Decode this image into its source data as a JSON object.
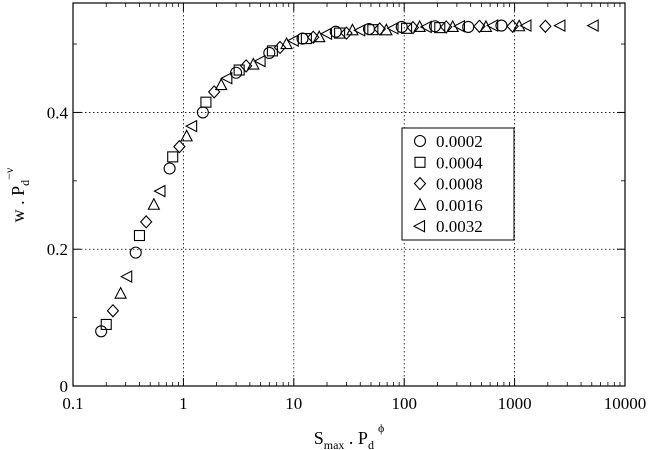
{
  "chart_data": {
    "type": "scatter",
    "title": "",
    "xlabel": {
      "main": "S",
      "sub1": "max",
      "mid": " . P",
      "sub2": "d",
      "sup": "ϕ"
    },
    "ylabel": {
      "main": "w . P",
      "sub": "d",
      "sup": "−ν"
    },
    "xscale": "log",
    "xlim": [
      0.1,
      10000
    ],
    "ylim": [
      0,
      0.56
    ],
    "xticks": [
      0.1,
      1,
      10,
      100,
      1000,
      10000
    ],
    "xtick_labels": [
      "0.1",
      "1",
      "10",
      "100",
      "1000",
      "10000"
    ],
    "yticks": [
      0,
      0.2,
      0.4
    ],
    "ytick_labels": [
      "0",
      "0.2",
      "0.4"
    ],
    "grid": "dotted major gridlines",
    "legend_position": "right-middle",
    "series": [
      {
        "name": "0.0002",
        "marker": "circle",
        "x": [
          0.18,
          0.37,
          0.75,
          1.5,
          3.0,
          6.0,
          12,
          24,
          48,
          95,
          190,
          380,
          760
        ],
        "y": [
          0.08,
          0.195,
          0.318,
          0.4,
          0.458,
          0.487,
          0.508,
          0.518,
          0.522,
          0.525,
          0.526,
          0.525,
          0.527
        ]
      },
      {
        "name": "0.0004",
        "marker": "square",
        "x": [
          0.2,
          0.4,
          0.8,
          1.6,
          3.2,
          6.4,
          13,
          26,
          52,
          105,
          210
        ],
        "y": [
          0.09,
          0.22,
          0.335,
          0.415,
          0.462,
          0.49,
          0.508,
          0.516,
          0.521,
          0.523,
          0.524
        ]
      },
      {
        "name": "0.0008",
        "marker": "diamond",
        "x": [
          0.23,
          0.46,
          0.92,
          1.9,
          3.7,
          7.5,
          15,
          30,
          60,
          120,
          240,
          480,
          960,
          1900
        ],
        "y": [
          0.11,
          0.24,
          0.35,
          0.43,
          0.468,
          0.495,
          0.51,
          0.516,
          0.522,
          0.524,
          0.525,
          0.526,
          0.526,
          0.526
        ]
      },
      {
        "name": "0.0016",
        "marker": "triangle-up",
        "x": [
          0.27,
          0.54,
          1.07,
          2.2,
          4.3,
          8.6,
          17,
          34,
          69,
          138,
          275,
          550,
          1100
        ],
        "y": [
          0.135,
          0.265,
          0.365,
          0.44,
          0.47,
          0.5,
          0.51,
          0.52,
          0.52,
          0.525,
          0.525,
          0.525,
          0.526
        ]
      },
      {
        "name": "0.0032",
        "marker": "triangle-left",
        "x": [
          0.31,
          0.62,
          1.2,
          2.5,
          5.0,
          10,
          20,
          40,
          80,
          160,
          320,
          640,
          1280,
          2600,
          5200
        ],
        "y": [
          0.16,
          0.285,
          0.38,
          0.45,
          0.475,
          0.505,
          0.515,
          0.52,
          0.523,
          0.525,
          0.526,
          0.527,
          0.527,
          0.527,
          0.527
        ]
      }
    ]
  }
}
